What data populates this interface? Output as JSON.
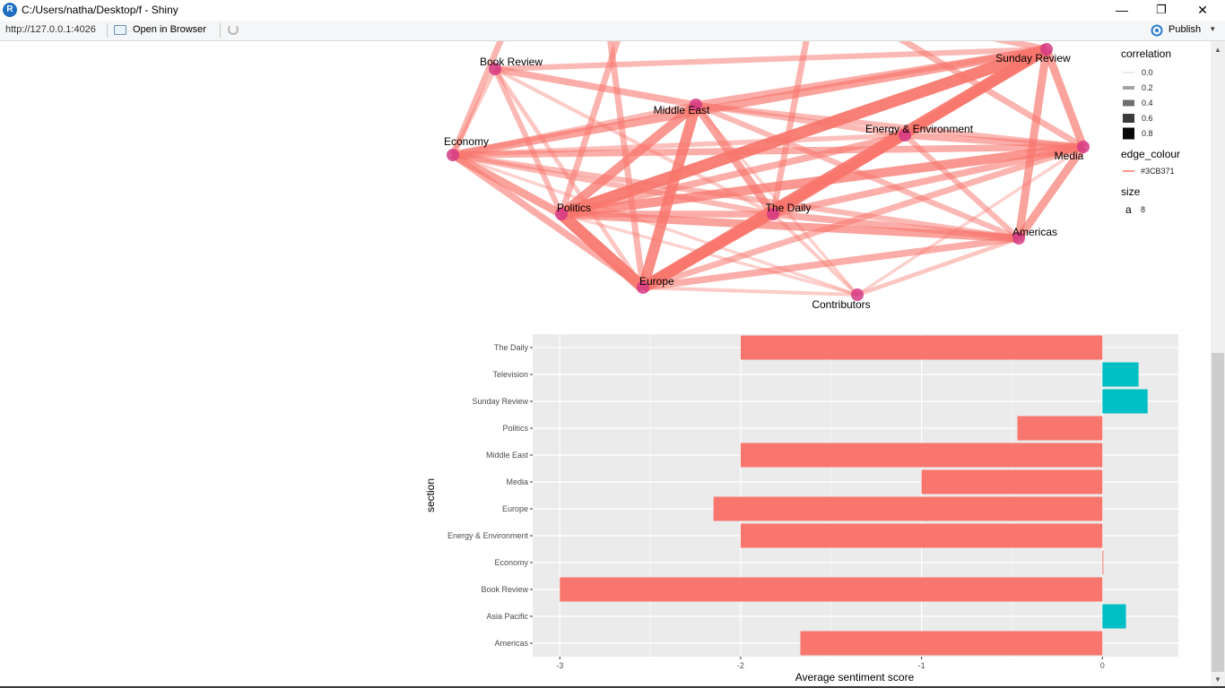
{
  "window": {
    "title": "C:/Users/natha/Desktop/f - Shiny",
    "app_icon_letter": "R",
    "minimize": "—",
    "maximize": "❐",
    "close": "✕"
  },
  "toolbar": {
    "url": "http://127.0.0.1:4026",
    "open_in_browser": "Open in Browser",
    "publish": "Publish",
    "publish_caret": "▾"
  },
  "network": {
    "edge_color": "#F8766D",
    "node_color": "#D63A85",
    "nodes": [
      {
        "id": "Book Review",
        "label": "Book Review"
      },
      {
        "id": "Middle East",
        "label": "Middle East"
      },
      {
        "id": "Sunday Review",
        "label": "Sunday Review"
      },
      {
        "id": "Economy",
        "label": "Economy"
      },
      {
        "id": "Energy & Environment",
        "label": "Energy & Environment"
      },
      {
        "id": "Media",
        "label": "Media"
      },
      {
        "id": "Politics",
        "label": "Politics"
      },
      {
        "id": "The Daily",
        "label": "The Daily"
      },
      {
        "id": "Americas",
        "label": "Americas"
      },
      {
        "id": "Europe",
        "label": "Europe"
      },
      {
        "id": "Contributors",
        "label": "Contributors"
      }
    ],
    "edges": [
      [
        "Politics",
        "Sunday Review",
        0.8
      ],
      [
        "Europe",
        "Sunday Review",
        0.8
      ],
      [
        "Politics",
        "Europe",
        0.8
      ],
      [
        "Europe",
        "Middle East",
        0.7
      ],
      [
        "Politics",
        "Middle East",
        0.6
      ],
      [
        "Economy",
        "Politics",
        0.5
      ],
      [
        "Economy",
        "Sunday Review",
        0.5
      ],
      [
        "Politics",
        "Media",
        0.6
      ],
      [
        "The Daily",
        "Sunday Review",
        0.6
      ],
      [
        "Europe",
        "The Daily",
        0.6
      ],
      [
        "Politics",
        "Americas",
        0.5
      ],
      [
        "Europe",
        "Energy & Environment",
        0.6
      ],
      [
        "Media",
        "Americas",
        0.5
      ],
      [
        "Sunday Review",
        "Americas",
        0.5
      ],
      [
        "Middle East",
        "The Daily",
        0.5
      ],
      [
        "Economy",
        "Europe",
        0.4
      ],
      [
        "Politics",
        "Energy & Environment",
        0.4
      ],
      [
        "Sunday Review",
        "Media",
        0.5
      ],
      [
        "Energy & Environment",
        "Media",
        0.4
      ],
      [
        "Economy",
        "Media",
        0.4
      ],
      [
        "Europe",
        "Americas",
        0.4
      ],
      [
        "The Daily",
        "Americas",
        0.4
      ],
      [
        "Book Review",
        "Middle East",
        0.4
      ],
      [
        "Book Review",
        "Politics",
        0.3
      ],
      [
        "Book Review",
        "Economy",
        0.2
      ],
      [
        "Book Review",
        "Sunday Review",
        0.3
      ],
      [
        "Economy",
        "Middle East",
        0.3
      ],
      [
        "Middle East",
        "Sunday Review",
        0.4
      ],
      [
        "Middle East",
        "Energy & Environment",
        0.3
      ],
      [
        "Energy & Environment",
        "Americas",
        0.3
      ],
      [
        "Energy & Environment",
        "Sunday Review",
        0.3
      ],
      [
        "Economy",
        "The Daily",
        0.3
      ],
      [
        "Economy",
        "Americas",
        0.3
      ],
      [
        "Contributors",
        "Politics",
        0.1
      ],
      [
        "Contributors",
        "Europe",
        0.15
      ],
      [
        "Contributors",
        "Americas",
        0.2
      ],
      [
        "Contributors",
        "The Daily",
        0.15
      ],
      [
        "Contributors",
        "Economy",
        0.1
      ],
      [
        "Contributors",
        "Media",
        0.1
      ],
      [
        "Contributors",
        "Middle East",
        0.1
      ],
      [
        "Book Review",
        "Europe",
        0.2
      ],
      [
        "Book Review",
        "The Daily",
        0.15
      ],
      [
        "The Daily",
        "Media",
        0.4
      ],
      [
        "Middle East",
        "Media",
        0.3
      ],
      [
        "Politics",
        "The Daily",
        0.4
      ],
      [
        "Middle East",
        "Americas",
        0.3
      ],
      [
        "Economy",
        "Energy & Environment",
        0.25
      ],
      [
        "Europe",
        "Media",
        0.35
      ]
    ]
  },
  "legend": {
    "correlation_title": "correlation",
    "correlation_items": [
      "0.0",
      "0.2",
      "0.4",
      "0.6",
      "0.8"
    ],
    "edge_colour_title": "edge_colour",
    "edge_colour_item": "#3CB371",
    "size_title": "size",
    "size_key": "a",
    "size_value": "8"
  },
  "chart_data": {
    "type": "bar",
    "orientation": "horizontal",
    "categories": [
      "The Daily",
      "Television",
      "Sunday Review",
      "Politics",
      "Middle East",
      "Media",
      "Europe",
      "Energy & Environment",
      "Economy",
      "Book Review",
      "Asia Pacific",
      "Americas"
    ],
    "values": [
      -2.0,
      0.2,
      0.25,
      -0.47,
      -2.0,
      -1.0,
      -2.15,
      -2.0,
      0.0,
      -3.0,
      0.13,
      -1.67
    ],
    "negative_color": "#F8766D",
    "positive_color": "#00BFC4",
    "xlabel": "Average sentiment score",
    "ylabel": "section",
    "xlim": [
      -3.15,
      0.42
    ],
    "xticks": [
      "-3",
      "-2",
      "-1",
      "0"
    ],
    "grid": true
  }
}
